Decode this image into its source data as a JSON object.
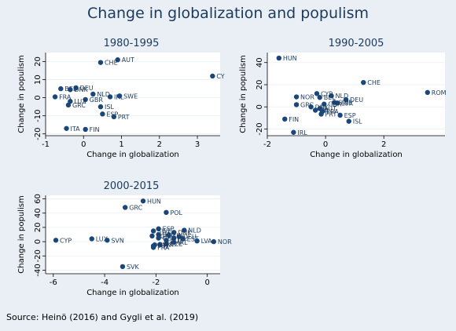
{
  "title": "Change in globalization and populism",
  "source": "Source: Heinö (2016) and Gygli et al. (2019)",
  "colors": {
    "background": "#e9eff4",
    "plot_background": "#ffffff",
    "marker": "#1a4679",
    "title": "#1b3a5c"
  },
  "chart_data": [
    {
      "type": "scatter",
      "title": "1980-1995",
      "xlabel": "Change in globalization",
      "ylabel": "Change in populism",
      "xlim": [
        -1,
        3.6
      ],
      "ylim": [
        -21,
        25
      ],
      "xticks": [
        -1,
        0,
        1,
        2,
        3
      ],
      "yticks": [
        -20,
        -10,
        0,
        10,
        20
      ],
      "grid": true,
      "points": [
        {
          "label": "AUT",
          "x": 0.9,
          "y": 21
        },
        {
          "label": "CHE",
          "x": 0.45,
          "y": 19.5
        },
        {
          "label": "CY",
          "x": 3.4,
          "y": 12
        },
        {
          "label": "BEL",
          "x": -0.6,
          "y": 5
        },
        {
          "label": "DEU",
          "x": -0.2,
          "y": 5.5
        },
        {
          "label": "DNK",
          "x": -0.35,
          "y": 4.5
        },
        {
          "label": "FRA",
          "x": -0.75,
          "y": 0.5
        },
        {
          "label": "NLD",
          "x": 0.25,
          "y": 2
        },
        {
          "label": "GBR",
          "x": 0.05,
          "y": -1
        },
        {
          "label": "IRL",
          "x": 0.7,
          "y": 0.5
        },
        {
          "label": "SWE",
          "x": 0.95,
          "y": 1
        },
        {
          "label": "LUX",
          "x": -0.35,
          "y": -2
        },
        {
          "label": "GRC",
          "x": -0.4,
          "y": -4
        },
        {
          "label": "ISL",
          "x": 0.45,
          "y": -5
        },
        {
          "label": "ESP",
          "x": 0.5,
          "y": -9
        },
        {
          "label": "PRT",
          "x": 0.8,
          "y": -10.5
        },
        {
          "label": "ITA",
          "x": -0.45,
          "y": -17
        },
        {
          "label": "FIN",
          "x": 0.05,
          "y": -17.5
        }
      ]
    },
    {
      "type": "scatter",
      "title": "1990-2005",
      "xlabel": "Change in globalization",
      "ylabel": "Change in populism",
      "xlim": [
        -2,
        4.1
      ],
      "ylim": [
        -26,
        49
      ],
      "xticks": [
        -2,
        0,
        2
      ],
      "yticks": [
        -20,
        0,
        20,
        40
      ],
      "grid": true,
      "points": [
        {
          "label": "HUN",
          "x": -1.6,
          "y": 44
        },
        {
          "label": "CHE",
          "x": 1.3,
          "y": 22
        },
        {
          "label": "ROM",
          "x": 3.5,
          "y": 13
        },
        {
          "label": "CYP",
          "x": -0.3,
          "y": 12
        },
        {
          "label": "NOR",
          "x": -1.0,
          "y": 9
        },
        {
          "label": "NLD",
          "x": 0.2,
          "y": 10
        },
        {
          "label": "BEL",
          "x": -0.2,
          "y": 8.5
        },
        {
          "label": "DEU",
          "x": 0.7,
          "y": 6.5
        },
        {
          "label": "SWE",
          "x": 0.3,
          "y": 4
        },
        {
          "label": "LUX",
          "x": 0.4,
          "y": 3.5
        },
        {
          "label": "GBR",
          "x": -0.05,
          "y": 2.5
        },
        {
          "label": "GRC",
          "x": -1.0,
          "y": 2
        },
        {
          "label": "DNK",
          "x": -0.5,
          "y": 0
        },
        {
          "label": "AUT",
          "x": -0.2,
          "y": -1.5
        },
        {
          "label": "ITA",
          "x": -0.35,
          "y": -3
        },
        {
          "label": "FRA",
          "x": -0.1,
          "y": -4
        },
        {
          "label": "ESP",
          "x": 0.5,
          "y": -7.5
        },
        {
          "label": "PRT",
          "x": -0.15,
          "y": -6.5
        },
        {
          "label": "FIN",
          "x": -1.4,
          "y": -11
        },
        {
          "label": "ISL",
          "x": 0.8,
          "y": -13
        },
        {
          "label": "IRL",
          "x": -1.1,
          "y": -23
        }
      ]
    },
    {
      "type": "scatter",
      "title": "2000-2015",
      "xlabel": "Change in globalization",
      "ylabel": "Change in populism",
      "xlim": [
        -6.3,
        0.5
      ],
      "ylim": [
        -45,
        65
      ],
      "xticks": [
        -6,
        -4,
        -2,
        0
      ],
      "yticks": [
        -40,
        -20,
        0,
        20,
        40,
        60
      ],
      "grid": true,
      "points": [
        {
          "label": "HUN",
          "x": -2.5,
          "y": 57
        },
        {
          "label": "GRC",
          "x": -3.2,
          "y": 48
        },
        {
          "label": "POL",
          "x": -1.6,
          "y": 41
        },
        {
          "label": "ESP",
          "x": -1.9,
          "y": 18
        },
        {
          "label": "NLD",
          "x": -0.9,
          "y": 16
        },
        {
          "label": "SWE",
          "x": -2.1,
          "y": 15
        },
        {
          "label": "DNK",
          "x": -1.3,
          "y": 13
        },
        {
          "label": "BEL",
          "x": -1.9,
          "y": 10
        },
        {
          "label": "BGR",
          "x": -2.15,
          "y": 8
        },
        {
          "label": "FIN",
          "x": -1.5,
          "y": 9
        },
        {
          "label": "DEU",
          "x": -1.1,
          "y": 7
        },
        {
          "label": "GBR",
          "x": -1.9,
          "y": 5
        },
        {
          "label": "ISL",
          "x": -1.3,
          "y": 5
        },
        {
          "label": "EST",
          "x": -0.95,
          "y": 4
        },
        {
          "label": "AUT",
          "x": -1.6,
          "y": 2
        },
        {
          "label": "CYP",
          "x": -5.9,
          "y": 2
        },
        {
          "label": "LUX",
          "x": -4.5,
          "y": 4
        },
        {
          "label": "SVN",
          "x": -3.9,
          "y": 2
        },
        {
          "label": "LVA",
          "x": -0.4,
          "y": 1
        },
        {
          "label": "NOR",
          "x": 0.25,
          "y": 0
        },
        {
          "label": "IRL",
          "x": -1.3,
          "y": -1
        },
        {
          "label": "CZE",
          "x": -1.6,
          "y": -3
        },
        {
          "label": "ITA",
          "x": -1.85,
          "y": -4
        },
        {
          "label": "SVK",
          "x": -2.05,
          "y": -4.5
        },
        {
          "label": "PRT",
          "x": -2.1,
          "y": -6
        },
        {
          "label": "FRA",
          "x": -2.1,
          "y": -8
        },
        {
          "label": "SVK",
          "x": -3.3,
          "y": -35
        }
      ]
    }
  ]
}
